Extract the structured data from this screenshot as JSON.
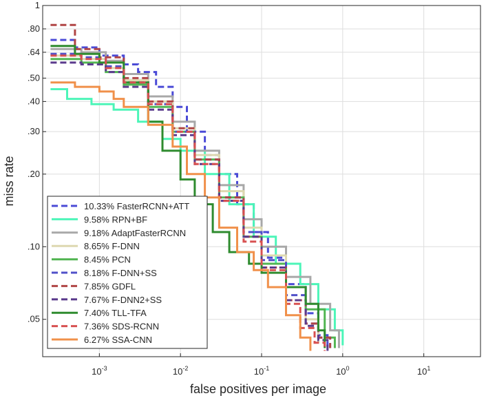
{
  "chart_data": {
    "type": "line",
    "title": "",
    "xlabel": "false positives per image",
    "ylabel": "miss rate",
    "xscale": "log",
    "yscale": "log",
    "xlim": [
      0.0002,
      50
    ],
    "ylim": [
      0.035,
      1
    ],
    "grid": true,
    "legend_position": "bottom-left",
    "x_ticks": [
      0.001,
      0.01,
      0.1,
      1,
      10
    ],
    "x_tick_labels": [
      {
        "base": "10",
        "exp": "-3"
      },
      {
        "base": "10",
        "exp": "-2"
      },
      {
        "base": "10",
        "exp": "-1"
      },
      {
        "base": "10",
        "exp": "0"
      },
      {
        "base": "10",
        "exp": "1"
      }
    ],
    "y_ticks": [
      0.05,
      0.1,
      0.2,
      0.3,
      0.4,
      0.5,
      0.64,
      0.8,
      1
    ],
    "y_tick_labels": [
      ".05",
      ".10",
      ".20",
      ".30",
      ".40",
      ".50",
      ".64",
      ".80",
      "1"
    ],
    "series": [
      {
        "name": "10.33% FasterRCNN+ATT",
        "color": "#4a4ad6",
        "dash": "dashed",
        "x": [
          0.00025,
          0.0005,
          0.001,
          0.002,
          0.003,
          0.005,
          0.008,
          0.012,
          0.02,
          0.03,
          0.05,
          0.08,
          0.12,
          0.2,
          0.35,
          0.5,
          0.65
        ],
        "y": [
          0.72,
          0.67,
          0.62,
          0.57,
          0.53,
          0.46,
          0.38,
          0.3,
          0.24,
          0.2,
          0.15,
          0.115,
          0.09,
          0.07,
          0.053,
          0.043,
          0.038
        ]
      },
      {
        "name": "9.58% RPN+BF",
        "color": "#4cf5b8",
        "dash": "solid",
        "x": [
          0.00025,
          0.0004,
          0.0008,
          0.0015,
          0.003,
          0.006,
          0.01,
          0.02,
          0.04,
          0.08,
          0.15,
          0.3,
          0.5,
          0.8,
          1.0
        ],
        "y": [
          0.45,
          0.41,
          0.39,
          0.37,
          0.33,
          0.28,
          0.25,
          0.2,
          0.15,
          0.11,
          0.085,
          0.07,
          0.055,
          0.045,
          0.039
        ]
      },
      {
        "name": "9.18% AdaptFasterRCNN",
        "color": "#a8a8a8",
        "dash": "solid",
        "x": [
          0.00025,
          0.0006,
          0.0012,
          0.002,
          0.004,
          0.008,
          0.015,
          0.03,
          0.06,
          0.1,
          0.2,
          0.4,
          0.7,
          0.9
        ],
        "y": [
          0.66,
          0.64,
          0.59,
          0.52,
          0.42,
          0.33,
          0.25,
          0.18,
          0.13,
          0.1,
          0.075,
          0.058,
          0.045,
          0.038
        ]
      },
      {
        "name": "8.65% F-DNN",
        "color": "#ddd8b0",
        "dash": "solid",
        "x": [
          0.00025,
          0.0006,
          0.0012,
          0.002,
          0.004,
          0.008,
          0.015,
          0.03,
          0.06,
          0.1,
          0.2,
          0.35,
          0.5
        ],
        "y": [
          0.62,
          0.6,
          0.55,
          0.49,
          0.4,
          0.31,
          0.24,
          0.17,
          0.12,
          0.092,
          0.068,
          0.05,
          0.04
        ]
      },
      {
        "name": "8.45% PCN",
        "color": "#52b552",
        "dash": "solid",
        "x": [
          0.00025,
          0.0006,
          0.0012,
          0.002,
          0.004,
          0.008,
          0.015,
          0.03,
          0.06,
          0.1,
          0.2,
          0.35,
          0.6,
          0.8
        ],
        "y": [
          0.6,
          0.58,
          0.53,
          0.47,
          0.38,
          0.3,
          0.23,
          0.16,
          0.11,
          0.085,
          0.068,
          0.055,
          0.042,
          0.038
        ]
      },
      {
        "name": "8.18% F-DNN+SS",
        "color": "#5050c8",
        "dash": "dashed",
        "x": [
          0.00025,
          0.0006,
          0.0012,
          0.002,
          0.004,
          0.008,
          0.015,
          0.03,
          0.06,
          0.1,
          0.2,
          0.35,
          0.5,
          0.7
        ],
        "y": [
          0.63,
          0.61,
          0.56,
          0.48,
          0.39,
          0.3,
          0.23,
          0.16,
          0.115,
          0.088,
          0.063,
          0.048,
          0.042,
          0.038
        ]
      },
      {
        "name": "7.85% GDFL",
        "color": "#b04545",
        "dash": "dashed",
        "x": [
          0.00025,
          0.0005,
          0.001,
          0.002,
          0.004,
          0.008,
          0.015,
          0.03,
          0.06,
          0.1,
          0.2,
          0.35,
          0.5,
          0.7
        ],
        "y": [
          0.83,
          0.66,
          0.61,
          0.5,
          0.4,
          0.31,
          0.23,
          0.16,
          0.11,
          0.082,
          0.06,
          0.048,
          0.042,
          0.038
        ]
      },
      {
        "name": "7.67% F-DNN2+SS",
        "color": "#5a3a8c",
        "dash": "dashed",
        "x": [
          0.00025,
          0.0006,
          0.0012,
          0.002,
          0.004,
          0.008,
          0.015,
          0.03,
          0.06,
          0.1,
          0.2,
          0.35,
          0.5,
          0.65
        ],
        "y": [
          0.58,
          0.57,
          0.53,
          0.46,
          0.37,
          0.29,
          0.22,
          0.155,
          0.11,
          0.082,
          0.06,
          0.047,
          0.041,
          0.037
        ]
      },
      {
        "name": "7.40% TLL-TFA",
        "color": "#2e8b2e",
        "dash": "solid",
        "x": [
          0.00025,
          0.0005,
          0.001,
          0.002,
          0.004,
          0.006,
          0.01,
          0.015,
          0.025,
          0.04,
          0.07,
          0.1,
          0.2,
          0.35,
          0.5,
          0.6
        ],
        "y": [
          0.68,
          0.63,
          0.58,
          0.48,
          0.33,
          0.25,
          0.19,
          0.15,
          0.115,
          0.095,
          0.085,
          0.078,
          0.068,
          0.058,
          0.045,
          0.038
        ]
      },
      {
        "name": "7.36% SDS-RCNN",
        "color": "#d85050",
        "dash": "dashed",
        "x": [
          0.00025,
          0.0006,
          0.0012,
          0.002,
          0.004,
          0.008,
          0.015,
          0.03,
          0.06,
          0.1,
          0.2,
          0.3,
          0.45,
          0.6
        ],
        "y": [
          0.62,
          0.6,
          0.55,
          0.48,
          0.39,
          0.3,
          0.22,
          0.155,
          0.105,
          0.08,
          0.058,
          0.046,
          0.04,
          0.037
        ]
      },
      {
        "name": "6.27% SSA-CNN",
        "color": "#f0904a",
        "dash": "solid",
        "x": [
          0.00025,
          0.0005,
          0.001,
          0.0015,
          0.002,
          0.004,
          0.008,
          0.012,
          0.02,
          0.03,
          0.05,
          0.08,
          0.12,
          0.2,
          0.3,
          0.4
        ],
        "y": [
          0.48,
          0.46,
          0.44,
          0.41,
          0.38,
          0.32,
          0.26,
          0.2,
          0.16,
          0.12,
          0.095,
          0.08,
          0.068,
          0.052,
          0.042,
          0.037
        ]
      }
    ]
  }
}
